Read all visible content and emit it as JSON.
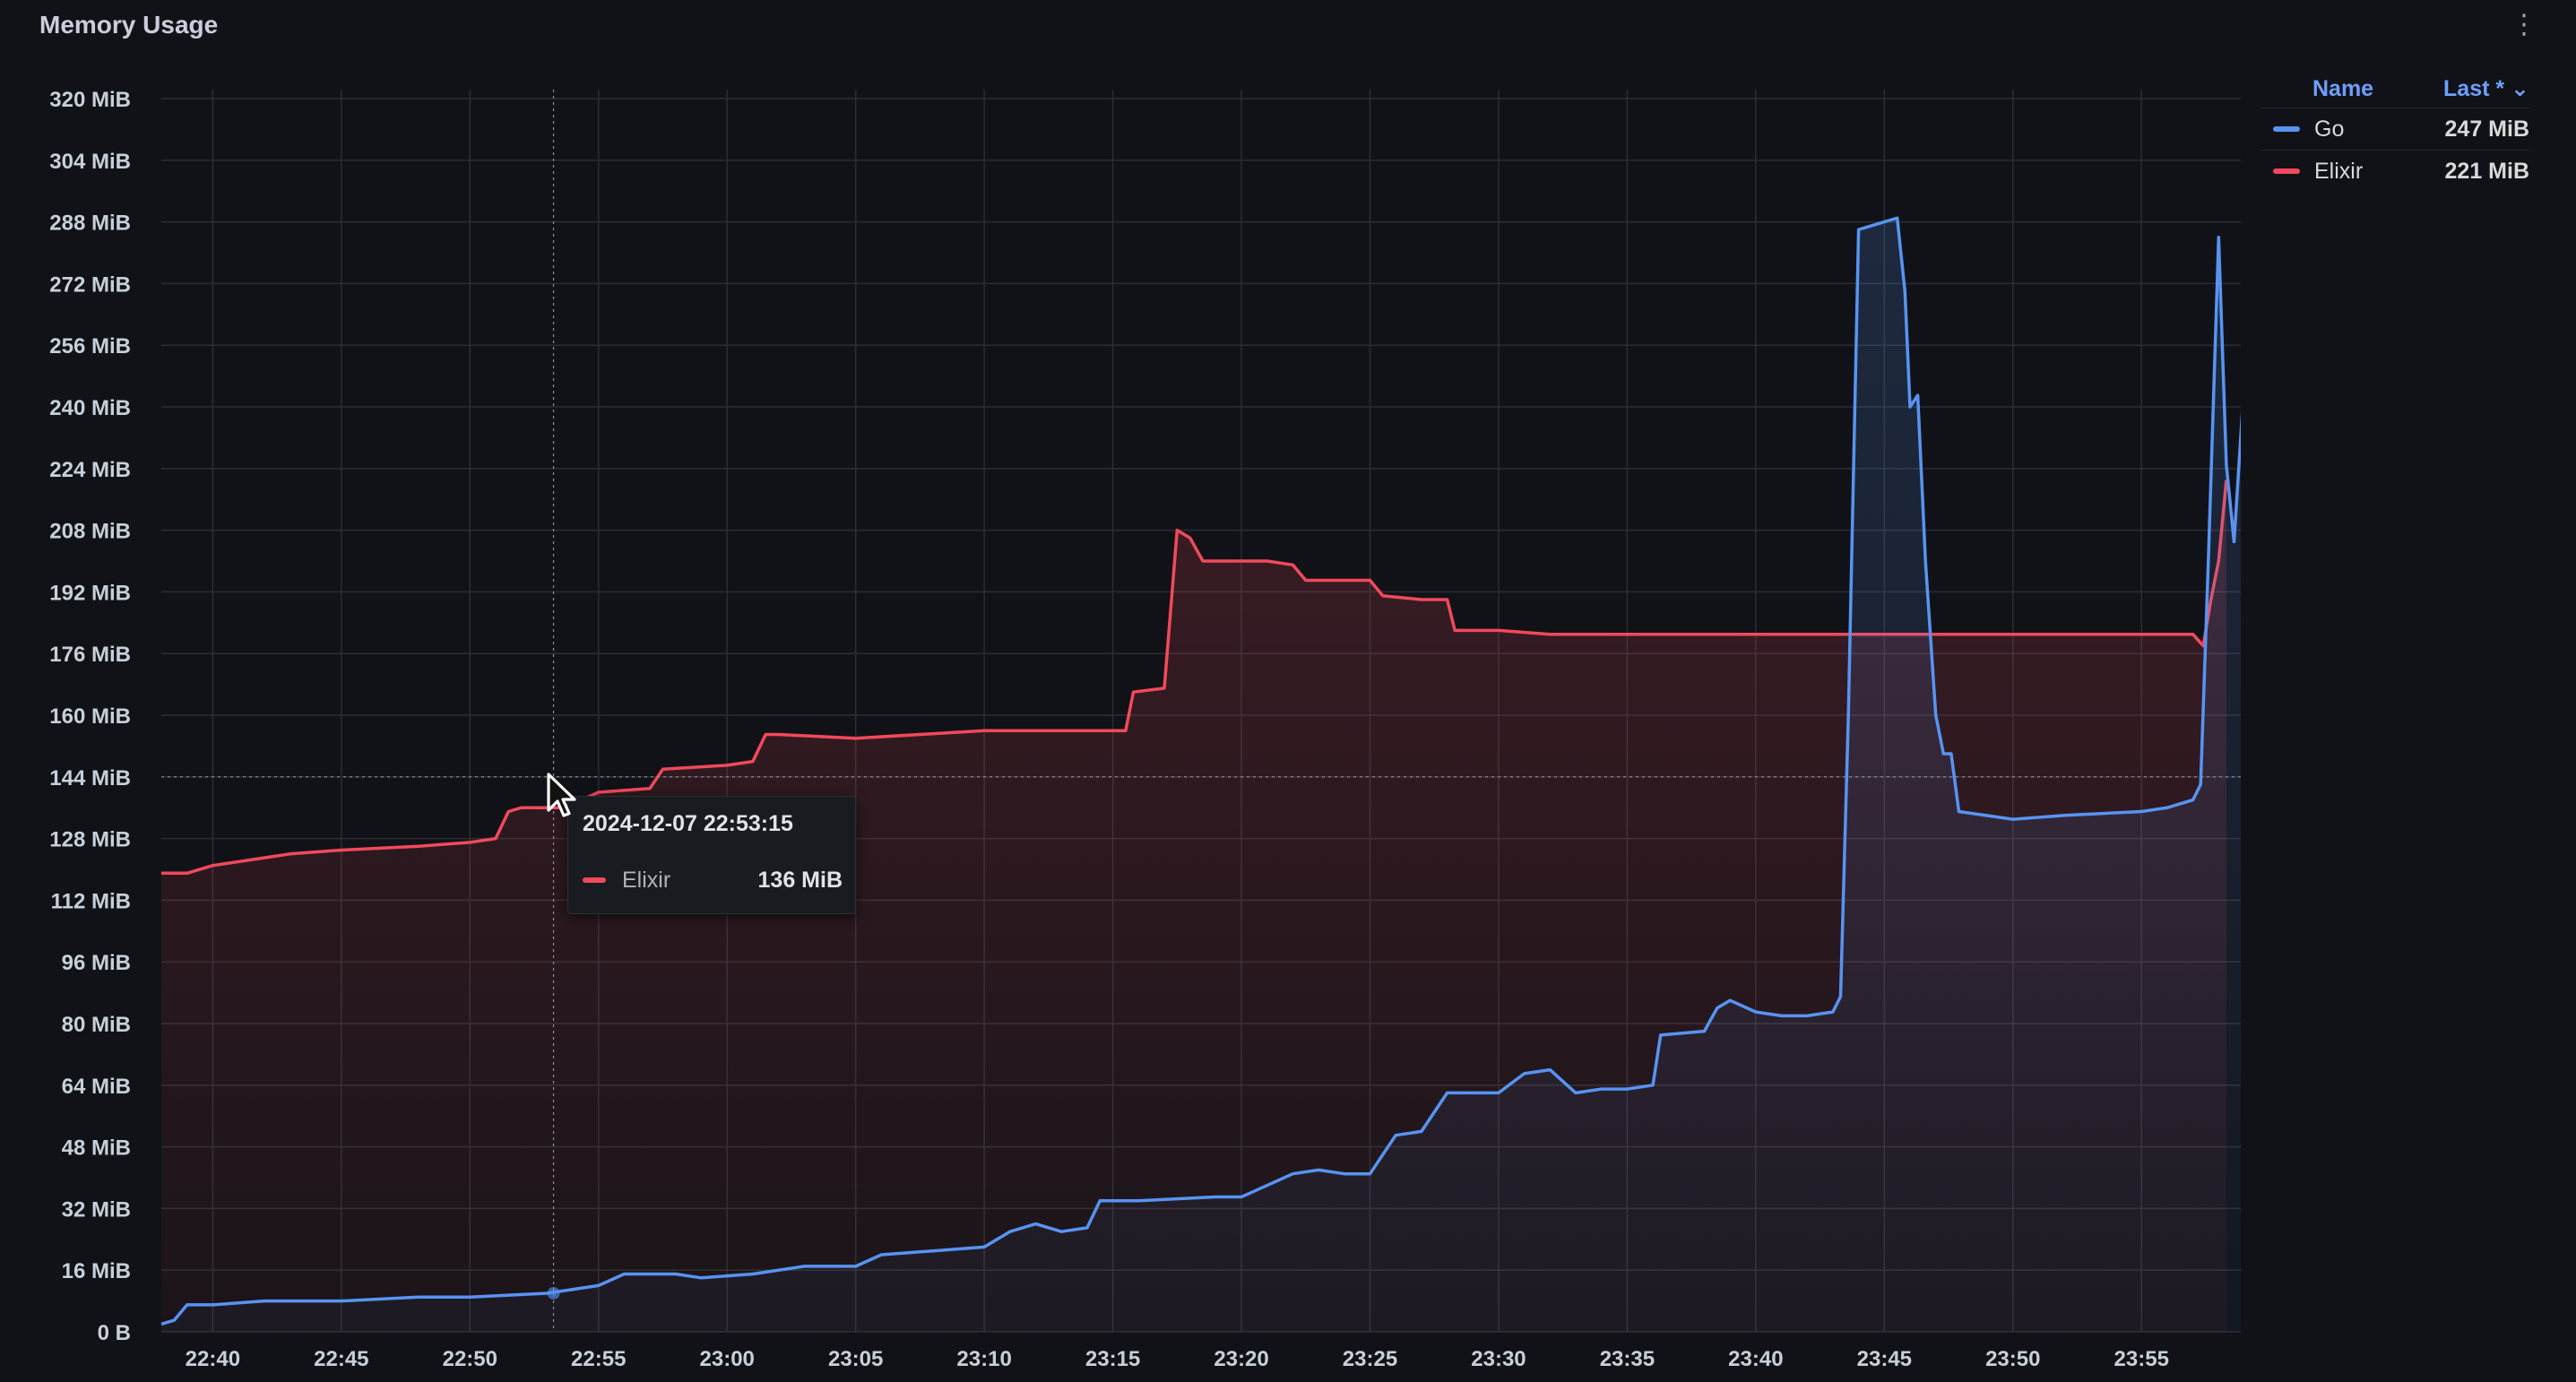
{
  "panel": {
    "title": "Memory Usage",
    "menu_icon": "kebab-menu-icon"
  },
  "legend": {
    "name_header": "Name",
    "last_header": "Last * ⌄",
    "items": [
      {
        "name": "Go",
        "value": "247 MiB",
        "color": "#5794f2"
      },
      {
        "name": "Elixir",
        "value": "221 MiB",
        "color": "#f2495c"
      }
    ]
  },
  "tooltip": {
    "time": "2024-12-07 22:53:15",
    "series": "Elixir",
    "value": "136 MiB",
    "color": "#f2495c"
  },
  "chart_data": {
    "type": "line",
    "title": "Memory Usage",
    "xlabel": "",
    "ylabel": "",
    "ylim": [
      0,
      320
    ],
    "y_unit": "MiB",
    "yticks": [
      "0 B",
      "16 MiB",
      "32 MiB",
      "48 MiB",
      "64 MiB",
      "80 MiB",
      "96 MiB",
      "112 MiB",
      "128 MiB",
      "144 MiB",
      "160 MiB",
      "176 MiB",
      "192 MiB",
      "208 MiB",
      "224 MiB",
      "240 MiB",
      "256 MiB",
      "272 MiB",
      "288 MiB",
      "304 MiB",
      "320 MiB"
    ],
    "xlim": [
      "22:38",
      "23:59"
    ],
    "xticks": [
      "22:40",
      "22:45",
      "22:50",
      "22:55",
      "23:00",
      "23:05",
      "23:10",
      "23:15",
      "23:20",
      "23:25",
      "23:30",
      "23:35",
      "23:40",
      "23:45",
      "23:50",
      "23:55"
    ],
    "grid": true,
    "legend_position": "right",
    "series": [
      {
        "name": "Elixir",
        "color": "#f2495c",
        "points": [
          [
            "22:38",
            119
          ],
          [
            "22:39",
            119
          ],
          [
            "22:40",
            121
          ],
          [
            "22:42",
            123
          ],
          [
            "22:43",
            124
          ],
          [
            "22:45",
            125
          ],
          [
            "22:48",
            126
          ],
          [
            "22:50",
            127
          ],
          [
            "22:51",
            128
          ],
          [
            "22:51.5",
            135
          ],
          [
            "22:52",
            136
          ],
          [
            "22:53",
            136
          ],
          [
            "22:53.5",
            136
          ],
          [
            "22:54",
            137
          ],
          [
            "22:55",
            140
          ],
          [
            "22:57",
            141
          ],
          [
            "22:57.5",
            146
          ],
          [
            "23:00",
            147
          ],
          [
            "23:01",
            148
          ],
          [
            "23:01.5",
            155
          ],
          [
            "23:02",
            155
          ],
          [
            "23:05",
            154
          ],
          [
            "23:10",
            156
          ],
          [
            "23:14",
            156
          ],
          [
            "23:15.5",
            156
          ],
          [
            "23:15.8",
            166
          ],
          [
            "23:17",
            167
          ],
          [
            "23:17.5",
            208
          ],
          [
            "23:18",
            206
          ],
          [
            "23:18.5",
            200
          ],
          [
            "23:21",
            200
          ],
          [
            "23:22",
            199
          ],
          [
            "23:22.5",
            195
          ],
          [
            "23:24",
            195
          ],
          [
            "23:25",
            195
          ],
          [
            "23:25.5",
            191
          ],
          [
            "23:27",
            190
          ],
          [
            "23:28",
            190
          ],
          [
            "23:28.3",
            182
          ],
          [
            "23:30",
            182
          ],
          [
            "23:32",
            181
          ],
          [
            "23:35",
            181
          ],
          [
            "23:40",
            181
          ],
          [
            "23:45",
            181
          ],
          [
            "23:50",
            181
          ],
          [
            "23:56",
            181
          ],
          [
            "23:57",
            181
          ],
          [
            "23:57.4",
            178
          ],
          [
            "23:57.7",
            190
          ],
          [
            "23:58",
            200
          ],
          [
            "23:58.3",
            221
          ]
        ]
      },
      {
        "name": "Go",
        "color": "#5794f2",
        "points": [
          [
            "22:38",
            2
          ],
          [
            "22:38.5",
            3
          ],
          [
            "22:39",
            7
          ],
          [
            "22:40",
            7
          ],
          [
            "22:42",
            8
          ],
          [
            "22:45",
            8
          ],
          [
            "22:48",
            9
          ],
          [
            "22:50",
            9
          ],
          [
            "22:53",
            10
          ],
          [
            "22:55",
            12
          ],
          [
            "22:56",
            15
          ],
          [
            "22:58",
            15
          ],
          [
            "22:59",
            14
          ],
          [
            "23:01",
            15
          ],
          [
            "23:03",
            17
          ],
          [
            "23:05",
            17
          ],
          [
            "23:06",
            20
          ],
          [
            "23:08",
            21
          ],
          [
            "23:10",
            22
          ],
          [
            "23:11",
            26
          ],
          [
            "23:12",
            28
          ],
          [
            "23:13",
            26
          ],
          [
            "23:14",
            27
          ],
          [
            "23:14.5",
            34
          ],
          [
            "23:16",
            34
          ],
          [
            "23:19",
            35
          ],
          [
            "23:20",
            35
          ],
          [
            "23:22",
            41
          ],
          [
            "23:23",
            42
          ],
          [
            "23:24",
            41
          ],
          [
            "23:25",
            41
          ],
          [
            "23:26",
            51
          ],
          [
            "23:27",
            52
          ],
          [
            "23:28",
            62
          ],
          [
            "23:30",
            62
          ],
          [
            "23:31",
            67
          ],
          [
            "23:32",
            68
          ],
          [
            "23:33",
            62
          ],
          [
            "23:34",
            63
          ],
          [
            "23:35",
            63
          ],
          [
            "23:36",
            64
          ],
          [
            "23:36.3",
            77
          ],
          [
            "23:38",
            78
          ],
          [
            "23:38.5",
            84
          ],
          [
            "23:39",
            86
          ],
          [
            "23:40",
            83
          ],
          [
            "23:41",
            82
          ],
          [
            "23:42",
            82
          ],
          [
            "23:43",
            83
          ],
          [
            "23:43.3",
            87
          ],
          [
            "23:43.6",
            160
          ],
          [
            "23:44",
            286
          ],
          [
            "23:45",
            288
          ],
          [
            "23:45.5",
            289
          ],
          [
            "23:45.8",
            270
          ],
          [
            "23:46",
            240
          ],
          [
            "23:46.3",
            243
          ],
          [
            "23:46.6",
            200
          ],
          [
            "23:47",
            160
          ],
          [
            "23:47.3",
            150
          ],
          [
            "23:47.6",
            150
          ],
          [
            "23:47.9",
            135
          ],
          [
            "23:50",
            133
          ],
          [
            "23:52",
            134
          ],
          [
            "23:55",
            135
          ],
          [
            "23:56",
            136
          ],
          [
            "23:57",
            138
          ],
          [
            "23:57.3",
            142
          ],
          [
            "23:57.6",
            200
          ],
          [
            "23:58",
            284
          ],
          [
            "23:58.3",
            225
          ],
          [
            "23:58.6",
            205
          ],
          [
            "23:59",
            247
          ]
        ]
      }
    ]
  }
}
